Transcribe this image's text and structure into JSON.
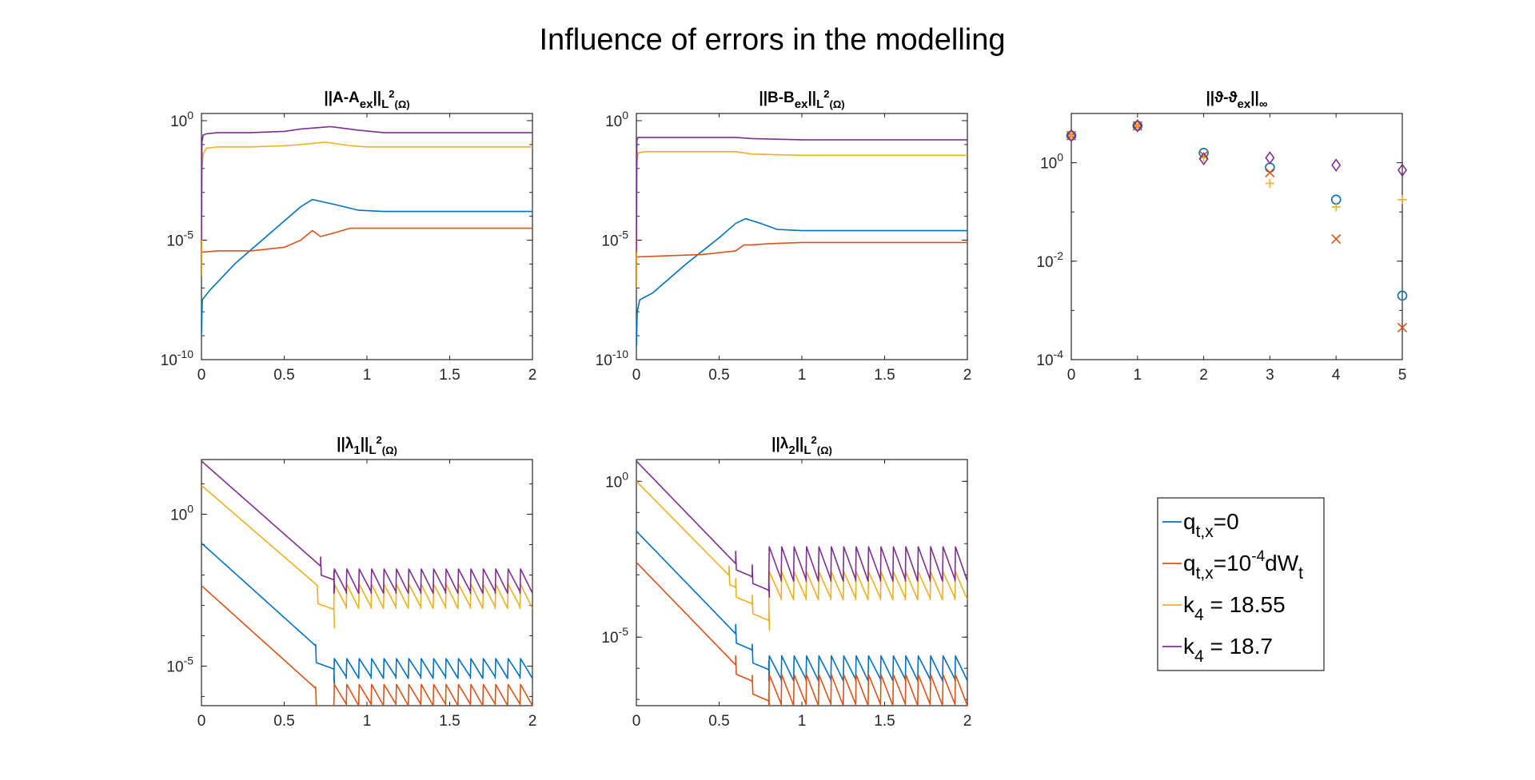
{
  "figure_title": "Influence of errors in the modelling",
  "colors": {
    "blue": "#0072BD",
    "orange": "#D95319",
    "yellow": "#EDB120",
    "purple": "#7E2F8E"
  },
  "legend": {
    "entries": [
      {
        "label": "q",
        "sub": "t,x",
        "suffix": "=0",
        "color": "#0072BD"
      },
      {
        "label": "q",
        "sub": "t,x",
        "mid": "=10",
        "sup": "-4",
        "tail": "dW",
        "tail_sub": "t",
        "color": "#D95319"
      },
      {
        "label": "k",
        "sub": "4",
        "suffix": " = 18.55",
        "color": "#EDB120"
      },
      {
        "label": "k",
        "sub": "4",
        "suffix": " = 18.7",
        "color": "#7E2F8E"
      }
    ]
  },
  "chart_data": [
    {
      "id": "A",
      "type": "line",
      "title": {
        "main": "||A-A",
        "sub1": "ex",
        "mid": "||",
        "sub2": "L",
        "sup2": "2",
        "sub3": "(Ω)"
      },
      "xlim": [
        0,
        2
      ],
      "ylim_log10": [
        -10,
        0.3
      ],
      "yscale": "log",
      "xticks": [
        "0",
        "0.5",
        "1",
        "1.5",
        "2"
      ],
      "xtick_values": [
        0,
        0.5,
        1,
        1.5,
        2
      ],
      "yticks": [
        {
          "value": 0,
          "base": "10",
          "exp": "0"
        },
        {
          "value": -5,
          "base": "10",
          "exp": "-5"
        },
        {
          "value": -10,
          "base": "10",
          "exp": "-10"
        }
      ],
      "series": [
        {
          "color": "#0072BD",
          "x": [
            0,
            0.005,
            0.05,
            0.2,
            0.4,
            0.6,
            0.67,
            0.8,
            0.95,
            1.1,
            1.3,
            2.0
          ],
          "y_log10": [
            -9,
            -7.5,
            -7.1,
            -6.0,
            -4.8,
            -3.6,
            -3.3,
            -3.5,
            -3.75,
            -3.8,
            -3.8,
            -3.8
          ]
        },
        {
          "color": "#D95319",
          "x": [
            0,
            0.01,
            0.1,
            0.3,
            0.5,
            0.6,
            0.67,
            0.72,
            0.8,
            0.9,
            1.0,
            1.2,
            2.0
          ],
          "y_log10": [
            -5.5,
            -5.5,
            -5.45,
            -5.45,
            -5.3,
            -5.0,
            -4.6,
            -4.85,
            -4.7,
            -4.5,
            -4.5,
            -4.5,
            -4.5
          ]
        },
        {
          "color": "#EDB120",
          "x": [
            0,
            0.003,
            0.01,
            0.03,
            0.1,
            0.3,
            0.5,
            0.6,
            0.75,
            0.9,
            1.0,
            1.5,
            2.0
          ],
          "y_log10": [
            -6.5,
            -2.0,
            -1.4,
            -1.15,
            -1.1,
            -1.1,
            -1.05,
            -1.0,
            -0.9,
            -1.05,
            -1.1,
            -1.1,
            -1.1
          ]
        },
        {
          "color": "#7E2F8E",
          "x": [
            0,
            0.003,
            0.01,
            0.03,
            0.1,
            0.3,
            0.5,
            0.6,
            0.78,
            0.95,
            1.1,
            1.5,
            2.0
          ],
          "y_log10": [
            -5,
            -0.9,
            -0.6,
            -0.55,
            -0.5,
            -0.5,
            -0.45,
            -0.35,
            -0.25,
            -0.4,
            -0.5,
            -0.5,
            -0.5
          ]
        }
      ]
    },
    {
      "id": "B",
      "type": "line",
      "title": {
        "main": "||B-B",
        "sub1": "ex",
        "mid": "||",
        "sub2": "L",
        "sup2": "2",
        "sub3": "(Ω)"
      },
      "xlim": [
        0,
        2
      ],
      "ylim_log10": [
        -10,
        0.3
      ],
      "yscale": "log",
      "xticks": [
        "0",
        "0.5",
        "1",
        "1.5",
        "2"
      ],
      "xtick_values": [
        0,
        0.5,
        1,
        1.5,
        2
      ],
      "yticks": [
        {
          "value": 0,
          "base": "10",
          "exp": "0"
        },
        {
          "value": -5,
          "base": "10",
          "exp": "-5"
        },
        {
          "value": -10,
          "base": "10",
          "exp": "-10"
        }
      ],
      "series": [
        {
          "color": "#0072BD",
          "x": [
            0,
            0.005,
            0.02,
            0.1,
            0.3,
            0.5,
            0.6,
            0.66,
            0.75,
            0.85,
            1.0,
            2.0
          ],
          "y_log10": [
            -9.5,
            -8,
            -7.5,
            -7.2,
            -6.0,
            -4.9,
            -4.3,
            -4.1,
            -4.3,
            -4.55,
            -4.6,
            -4.6
          ]
        },
        {
          "color": "#D95319",
          "x": [
            0,
            0.01,
            0.2,
            0.4,
            0.6,
            0.65,
            0.7,
            0.8,
            1.0,
            2.0
          ],
          "y_log10": [
            -5.7,
            -5.7,
            -5.65,
            -5.6,
            -5.45,
            -5.2,
            -5.2,
            -5.15,
            -5.1,
            -5.1
          ]
        },
        {
          "color": "#EDB120",
          "x": [
            0,
            0.003,
            0.01,
            0.05,
            0.3,
            0.6,
            0.7,
            1.0,
            2.0
          ],
          "y_log10": [
            -7,
            -1.8,
            -1.35,
            -1.3,
            -1.3,
            -1.3,
            -1.4,
            -1.45,
            -1.45
          ]
        },
        {
          "color": "#7E2F8E",
          "x": [
            0,
            0.003,
            0.01,
            0.05,
            0.3,
            0.6,
            0.7,
            1.0,
            2.0
          ],
          "y_log10": [
            -5.5,
            -0.8,
            -0.7,
            -0.7,
            -0.7,
            -0.7,
            -0.75,
            -0.8,
            -0.8
          ]
        }
      ]
    },
    {
      "id": "theta",
      "type": "scatter",
      "title": {
        "main": "||ϑ-ϑ",
        "sub1": "ex",
        "mid": "||",
        "sub2": "∞",
        "sup2": "",
        "sub3": ""
      },
      "xlim": [
        0,
        5
      ],
      "ylim_log10": [
        -4,
        1
      ],
      "yscale": "log",
      "xticks": [
        "0",
        "1",
        "2",
        "3",
        "4",
        "5"
      ],
      "xtick_values": [
        0,
        1,
        2,
        3,
        4,
        5
      ],
      "yticks": [
        {
          "value": 0,
          "base": "10",
          "exp": "0"
        },
        {
          "value": -2,
          "base": "10",
          "exp": "-2"
        },
        {
          "value": -4,
          "base": "10",
          "exp": "-4"
        }
      ],
      "series": [
        {
          "color": "#0072BD",
          "marker": "circle",
          "x": [
            0,
            1,
            2,
            3,
            4,
            5
          ],
          "y_log10": [
            0.55,
            0.75,
            0.2,
            -0.1,
            -0.75,
            -2.7
          ]
        },
        {
          "color": "#D95319",
          "marker": "x",
          "x": [
            0,
            1,
            2,
            3,
            4,
            5
          ],
          "y_log10": [
            0.55,
            0.75,
            0.15,
            -0.2,
            -1.55,
            -3.35
          ]
        },
        {
          "color": "#EDB120",
          "marker": "plus",
          "x": [
            0,
            1,
            2,
            3,
            4,
            5
          ],
          "y_log10": [
            0.55,
            0.75,
            0.1,
            -0.42,
            -0.9,
            -0.75
          ]
        },
        {
          "color": "#7E2F8E",
          "marker": "diamond",
          "x": [
            0,
            1,
            2,
            3,
            4,
            5
          ],
          "y_log10": [
            0.55,
            0.75,
            0.08,
            0.1,
            -0.05,
            -0.15
          ]
        }
      ]
    },
    {
      "id": "lambda1",
      "type": "line",
      "title": {
        "main": "||λ",
        "sub1": "1",
        "mid": "||",
        "sub2": "L",
        "sup2": "2",
        "sub3": "(Ω)"
      },
      "xlim": [
        0,
        2
      ],
      "ylim_log10": [
        -6.3,
        1.8
      ],
      "yscale": "log",
      "xticks": [
        "0",
        "0.5",
        "1",
        "1.5",
        "2"
      ],
      "xtick_values": [
        0,
        0.5,
        1,
        1.5,
        2
      ],
      "yticks": [
        {
          "value": 0,
          "base": "10",
          "exp": "0"
        },
        {
          "value": -5,
          "base": "10",
          "exp": "-5"
        }
      ],
      "series": [
        {
          "color": "#0072BD",
          "sawtooth": {
            "start": [
              0,
              -0.95
            ],
            "slope": -5.0,
            "drops": [
              [
                0.69,
                -0.55
              ],
              [
                0.8,
                -0.55
              ]
            ],
            "teeth_from": 0.8,
            "teeth_to": 2.0,
            "period": 0.075,
            "low": -5.4,
            "high": -4.75
          }
        },
        {
          "color": "#D95319",
          "sawtooth": {
            "start": [
              0,
              -2.35
            ],
            "slope": -5.0,
            "drops": [
              [
                0.69,
                -0.55
              ],
              [
                0.8,
                -0.55
              ]
            ],
            "teeth_from": 0.8,
            "teeth_to": 2.0,
            "period": 0.075,
            "low": -6.3,
            "high": -5.6
          }
        },
        {
          "color": "#EDB120",
          "sawtooth": {
            "start": [
              0,
              0.95
            ],
            "slope": -4.8,
            "drops": [
              [
                0.7,
                -0.6
              ],
              [
                0.8,
                -0.6
              ]
            ],
            "teeth_from": 0.8,
            "teeth_to": 2.0,
            "period": 0.075,
            "low": -3.1,
            "high": -2.3
          }
        },
        {
          "color": "#7E2F8E",
          "sawtooth": {
            "start": [
              0,
              1.75
            ],
            "slope": -4.9,
            "drops": [
              [
                0.72,
                -0.3
              ],
              [
                0.8,
                -0.3
              ]
            ],
            "teeth_from": 0.8,
            "teeth_to": 2.0,
            "period": 0.075,
            "low": -2.6,
            "high": -1.8
          }
        }
      ]
    },
    {
      "id": "lambda2",
      "type": "line",
      "title": {
        "main": "||λ",
        "sub1": "2",
        "mid": "||",
        "sub2": "L",
        "sup2": "2",
        "sub3": "(Ω)"
      },
      "xlim": [
        0,
        2
      ],
      "ylim_log10": [
        -7.2,
        0.7
      ],
      "yscale": "log",
      "xticks": [
        "0",
        "0.5",
        "1",
        "1.5",
        "2"
      ],
      "xtick_values": [
        0,
        0.5,
        1,
        1.5,
        2
      ],
      "yticks": [
        {
          "value": 0,
          "base": "10",
          "exp": "0"
        },
        {
          "value": -5,
          "base": "10",
          "exp": "-5"
        }
      ],
      "series": [
        {
          "color": "#0072BD",
          "sawtooth": {
            "start": [
              0,
              -1.6
            ],
            "slope": -5.6,
            "drops": [
              [
                0.6,
                -0.3
              ],
              [
                0.7,
                -0.4
              ],
              [
                0.8,
                -0.3
              ]
            ],
            "teeth_from": 0.8,
            "teeth_to": 2.0,
            "period": 0.075,
            "low": -6.4,
            "high": -5.6
          }
        },
        {
          "color": "#D95319",
          "sawtooth": {
            "start": [
              0,
              -2.6
            ],
            "slope": -5.6,
            "drops": [
              [
                0.6,
                -0.3
              ],
              [
                0.7,
                -0.4
              ],
              [
                0.8,
                -0.3
              ]
            ],
            "teeth_from": 0.8,
            "teeth_to": 2.0,
            "period": 0.075,
            "low": -7.2,
            "high": -6.2
          }
        },
        {
          "color": "#EDB120",
          "sawtooth": {
            "start": [
              0,
              0.0
            ],
            "slope": -5.5,
            "drops": [
              [
                0.56,
                -0.3
              ],
              [
                0.6,
                -0.3
              ],
              [
                0.7,
                -0.3
              ],
              [
                0.8,
                -0.3
              ]
            ],
            "teeth_from": 0.8,
            "teeth_to": 2.0,
            "period": 0.075,
            "low": -3.8,
            "high": -2.9
          }
        },
        {
          "color": "#7E2F8E",
          "sawtooth": {
            "start": [
              0,
              0.65
            ],
            "slope": -5.6,
            "drops": [
              [
                0.6,
                -0.2
              ],
              [
                0.7,
                -0.2
              ],
              [
                0.8,
                -0.2
              ]
            ],
            "teeth_from": 0.8,
            "teeth_to": 2.0,
            "period": 0.075,
            "low": -3.2,
            "high": -2.1
          }
        }
      ]
    }
  ]
}
